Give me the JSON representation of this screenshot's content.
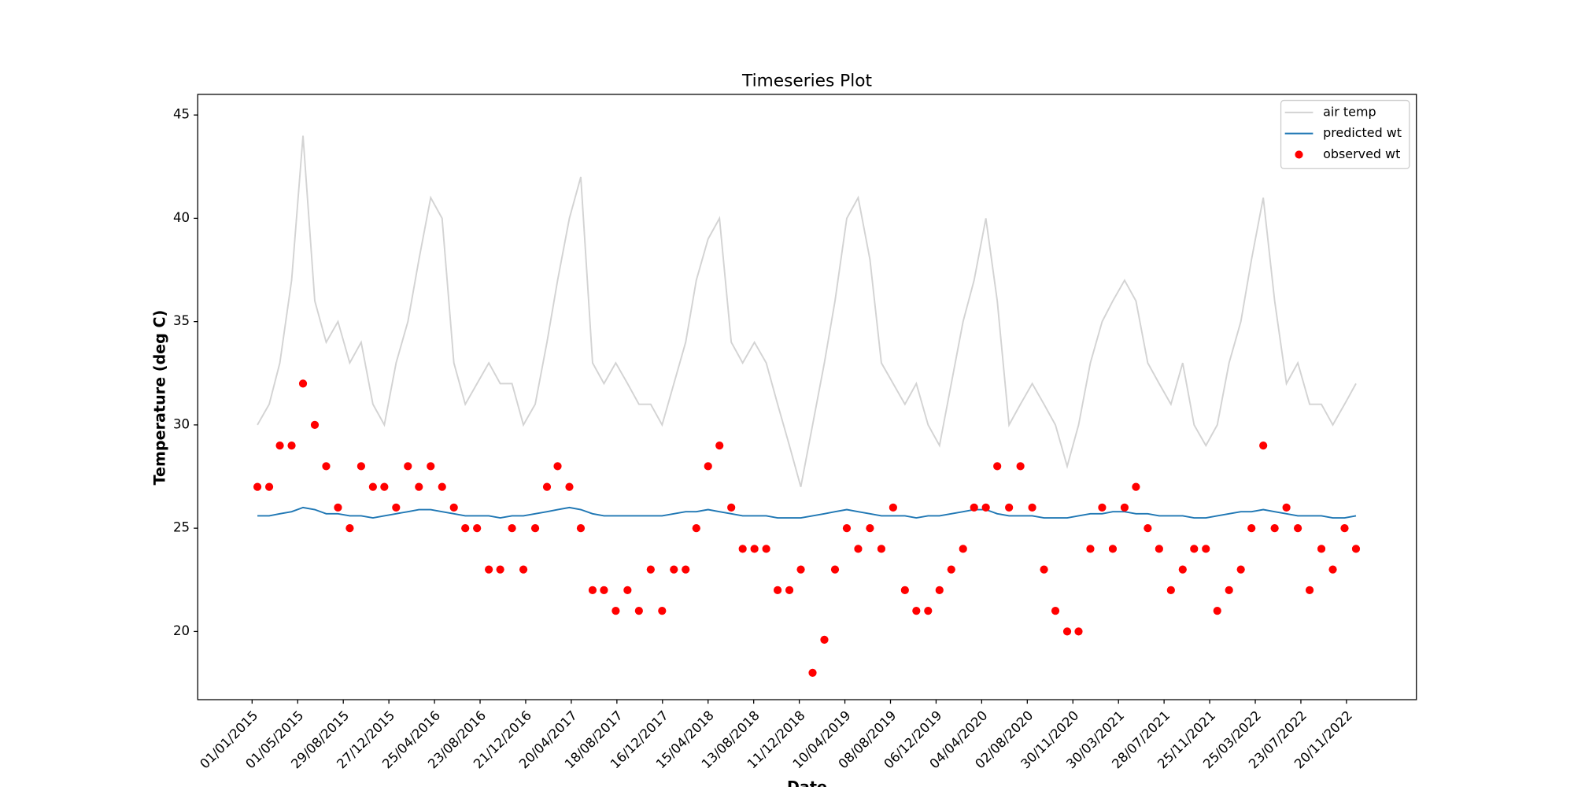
{
  "chart_data": {
    "type": "line",
    "title": "Timeseries Plot",
    "xlabel": "Date",
    "ylabel": "Temperature (deg C)",
    "x": [
      "15/01/2015",
      "15/02/2015",
      "15/03/2015",
      "15/04/2015",
      "15/05/2015",
      "15/06/2015",
      "15/07/2015",
      "15/08/2015",
      "15/09/2015",
      "15/10/2015",
      "15/11/2015",
      "15/12/2015",
      "15/01/2016",
      "15/02/2016",
      "15/03/2016",
      "15/04/2016",
      "15/05/2016",
      "15/06/2016",
      "15/07/2016",
      "15/08/2016",
      "15/09/2016",
      "15/10/2016",
      "15/11/2016",
      "15/12/2016",
      "15/01/2017",
      "15/02/2017",
      "15/03/2017",
      "15/04/2017",
      "15/05/2017",
      "15/06/2017",
      "15/07/2017",
      "15/08/2017",
      "15/09/2017",
      "15/10/2017",
      "15/11/2017",
      "15/12/2017",
      "15/01/2018",
      "15/02/2018",
      "15/03/2018",
      "15/04/2018",
      "15/05/2018",
      "15/06/2018",
      "15/07/2018",
      "15/08/2018",
      "15/09/2018",
      "15/10/2018",
      "15/11/2018",
      "15/12/2018",
      "15/01/2019",
      "15/02/2019",
      "15/03/2019",
      "15/04/2019",
      "15/05/2019",
      "15/06/2019",
      "15/07/2019",
      "15/08/2019",
      "15/09/2019",
      "15/10/2019",
      "15/11/2019",
      "15/12/2019",
      "15/01/2020",
      "15/02/2020",
      "15/03/2020",
      "15/04/2020",
      "15/05/2020",
      "15/06/2020",
      "15/07/2020",
      "15/08/2020",
      "15/09/2020",
      "15/10/2020",
      "15/11/2020",
      "15/12/2020",
      "15/01/2021",
      "15/02/2021",
      "15/03/2021",
      "15/04/2021",
      "15/05/2021",
      "15/06/2021",
      "15/07/2021",
      "15/08/2021",
      "15/09/2021",
      "15/10/2021",
      "15/11/2021",
      "15/12/2021",
      "15/01/2022",
      "15/02/2022",
      "15/03/2022",
      "15/04/2022",
      "15/05/2022",
      "15/06/2022",
      "15/07/2022",
      "15/08/2022",
      "15/09/2022",
      "15/10/2022",
      "15/11/2022",
      "15/12/2022"
    ],
    "series": [
      {
        "name": "air temp",
        "color": "#d3d3d3",
        "style": "line",
        "values": [
          30,
          31,
          33,
          37,
          44,
          36,
          34,
          35,
          33,
          34,
          31,
          30,
          33,
          35,
          38,
          41,
          40,
          33,
          31,
          32,
          33,
          32,
          32,
          30,
          31,
          34,
          37,
          40,
          42,
          33,
          32,
          33,
          32,
          31,
          31,
          30,
          32,
          34,
          37,
          39,
          40,
          34,
          33,
          34,
          33,
          31,
          29,
          27,
          30,
          33,
          36,
          40,
          41,
          38,
          33,
          32,
          31,
          32,
          30,
          29,
          32,
          35,
          37,
          40,
          36,
          30,
          31,
          32,
          31,
          30,
          28,
          30,
          33,
          35,
          36,
          37,
          36,
          33,
          32,
          31,
          33,
          30,
          29,
          30,
          33,
          35,
          38,
          41,
          36,
          32,
          33,
          31,
          31,
          30,
          31,
          32
        ]
      },
      {
        "name": "predicted wt",
        "color": "#1f77b4",
        "style": "line",
        "values": [
          25.6,
          25.6,
          25.7,
          25.8,
          26.0,
          25.9,
          25.7,
          25.7,
          25.6,
          25.6,
          25.5,
          25.6,
          25.7,
          25.8,
          25.9,
          25.9,
          25.8,
          25.7,
          25.6,
          25.6,
          25.6,
          25.5,
          25.6,
          25.6,
          25.7,
          25.8,
          25.9,
          26.0,
          25.9,
          25.7,
          25.6,
          25.6,
          25.6,
          25.6,
          25.6,
          25.6,
          25.7,
          25.8,
          25.8,
          25.9,
          25.8,
          25.7,
          25.6,
          25.6,
          25.6,
          25.5,
          25.5,
          25.5,
          25.6,
          25.7,
          25.8,
          25.9,
          25.8,
          25.7,
          25.6,
          25.6,
          25.6,
          25.5,
          25.6,
          25.6,
          25.7,
          25.8,
          25.9,
          25.9,
          25.7,
          25.6,
          25.6,
          25.6,
          25.5,
          25.5,
          25.5,
          25.6,
          25.7,
          25.7,
          25.8,
          25.8,
          25.7,
          25.7,
          25.6,
          25.6,
          25.6,
          25.5,
          25.5,
          25.6,
          25.7,
          25.8,
          25.8,
          25.9,
          25.8,
          25.7,
          25.6,
          25.6,
          25.6,
          25.5,
          25.5,
          25.6
        ]
      },
      {
        "name": "observed wt",
        "color": "#ff0000",
        "style": "scatter",
        "values": [
          27,
          27,
          29,
          29,
          32,
          30,
          28,
          26,
          25,
          28,
          27,
          27,
          26,
          28,
          27,
          28,
          27,
          26,
          25,
          25,
          23,
          23,
          25,
          23,
          25,
          27,
          28,
          27,
          25,
          22,
          22,
          21,
          22,
          21,
          23,
          21,
          23,
          23,
          25,
          28,
          29,
          26,
          24,
          24,
          24,
          22,
          22,
          23,
          18,
          19.6,
          23,
          25,
          24,
          25,
          24,
          26,
          22,
          21,
          21,
          22,
          23,
          24,
          26,
          26,
          28,
          26,
          28,
          26,
          23,
          21,
          20,
          20,
          24,
          26,
          24,
          26,
          27,
          25,
          24,
          22,
          23,
          24,
          24,
          21,
          22,
          23,
          25,
          29,
          25,
          26,
          25,
          22,
          24,
          23,
          25,
          24
        ]
      }
    ],
    "xlim": [
      "11/08/2014",
      "23/05/2023"
    ],
    "xticks": [
      "01/01/2015",
      "01/05/2015",
      "29/08/2015",
      "27/12/2015",
      "25/04/2016",
      "23/08/2016",
      "21/12/2016",
      "20/04/2017",
      "18/08/2017",
      "16/12/2017",
      "15/04/2018",
      "13/08/2018",
      "11/12/2018",
      "10/04/2019",
      "08/08/2019",
      "06/12/2019",
      "04/04/2020",
      "02/08/2020",
      "30/11/2020",
      "30/03/2021",
      "28/07/2021",
      "25/11/2021",
      "25/03/2022",
      "23/07/2022",
      "20/11/2022"
    ],
    "ylim": [
      16.7,
      46.0
    ],
    "yticks": [
      20,
      25,
      30,
      35,
      40,
      45
    ],
    "grid": false,
    "legend": "upper right"
  }
}
